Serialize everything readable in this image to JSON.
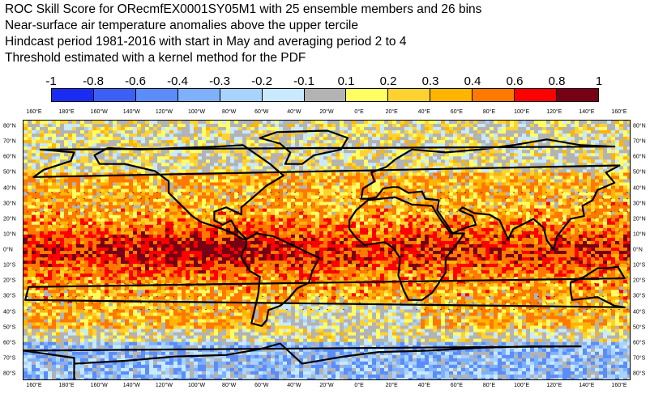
{
  "title_lines": [
    "ROC Skill Score for ORecmfEX0001SY05M1 with 25 ensemble members and 26 bins",
    "Near-surface air temperature anomalies above the upper tercile",
    "Hindcast period 1981-2016 with start in May and averaging period  2 to  4",
    "Threshold estimated with a kernel method for the PDF"
  ],
  "colorbar": {
    "labels": [
      "-1",
      "-0.8",
      "-0.6",
      "-0.4",
      "-0.3",
      "-0.2",
      "-0.1",
      "0.1",
      "0.2",
      "0.3",
      "0.4",
      "0.6",
      "0.8",
      "1"
    ],
    "colors": [
      "#1a2cf2",
      "#3c5ff5",
      "#5c8cf7",
      "#7fb0fa",
      "#a7d3fd",
      "#c9e9ff",
      "#b3b3b3",
      "#ffff64",
      "#ffd232",
      "#ffb400",
      "#ff7800",
      "#ff0000",
      "#780014"
    ]
  },
  "map": {
    "lon_labels": [
      "160°E",
      "180°E",
      "160°W",
      "140°W",
      "120°W",
      "100°W",
      "80°W",
      "60°W",
      "40°W",
      "20°W",
      "0°E",
      "20°E",
      "40°E",
      "60°E",
      "80°E",
      "100°E",
      "120°E",
      "140°E",
      "160°E"
    ],
    "lat_labels": [
      "80°N",
      "70°N",
      "60°N",
      "50°N",
      "40°N",
      "30°N",
      "20°N",
      "10°N",
      "0°N",
      "10°S",
      "20°S",
      "30°S",
      "40°S",
      "50°S",
      "60°S",
      "70°S",
      "80°S"
    ]
  }
}
